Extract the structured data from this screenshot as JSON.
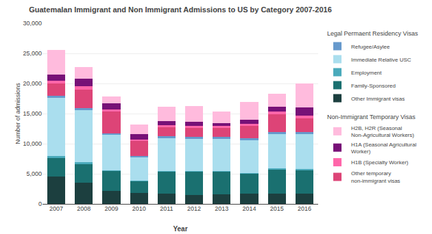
{
  "chart_data": {
    "type": "bar",
    "stacked": true,
    "title": "Guatemalan Immigrant and Non Immigrant Admissions to US by Category 2007-2016",
    "x_label": "Year",
    "y_label": "Number of admissions",
    "categories": [
      "2007",
      "2008",
      "2009",
      "2010",
      "2011",
      "2012",
      "2013",
      "2014",
      "2015",
      "2016"
    ],
    "series": [
      {
        "name": "Other Immigrant visas",
        "group": "Legal Permaent Residency Visas",
        "color": "#1c3f3f",
        "values": [
          4600,
          3500,
          2200,
          1800,
          1700,
          1500,
          1600,
          1700,
          1700,
          1700
        ]
      },
      {
        "name": "Family-Sponsored",
        "group": "Legal Permaent Residency Visas",
        "color": "#1a7070",
        "values": [
          3100,
          3200,
          3300,
          2000,
          3700,
          3900,
          3800,
          3300,
          4000,
          3900
        ]
      },
      {
        "name": "Employment",
        "group": "Legal Permaent Residency Visas",
        "color": "#4aaabb",
        "values": [
          200,
          200,
          100,
          100,
          100,
          100,
          100,
          100,
          200,
          200
        ]
      },
      {
        "name": "Immediate Relative USC",
        "group": "Legal Permaent Residency Visas",
        "color": "#aadeee",
        "values": [
          9800,
          8700,
          5900,
          3900,
          5500,
          5300,
          5400,
          5500,
          5700,
          5800
        ]
      },
      {
        "name": "Refugee/Asylee",
        "group": "Legal Permaent Residency Visas",
        "color": "#6699cc",
        "values": [
          200,
          300,
          200,
          100,
          200,
          300,
          200,
          300,
          300,
          300
        ]
      },
      {
        "name": "Other temporary non-immigrant visas",
        "group": "Non-Immigrant Temporary Visas",
        "color": "#dd4477",
        "values": [
          2100,
          3100,
          3600,
          2500,
          1500,
          1500,
          1500,
          2000,
          3000,
          2300
        ]
      },
      {
        "name": "H1B (Specialty Worker)",
        "group": "Non-Immigrant Temporary Visas",
        "color": "#ff66aa",
        "values": [
          500,
          600,
          400,
          300,
          400,
          400,
          300,
          400,
          400,
          500
        ]
      },
      {
        "name": "H1A (Seasonal Agricultural Worker)",
        "group": "Non-Immigrant Temporary Visas",
        "color": "#771177",
        "values": [
          1000,
          1200,
          1000,
          900,
          600,
          600,
          500,
          700,
          800,
          1300
        ]
      },
      {
        "name": "H2B, H2R (Seasonal Non-Agricultural Workers)",
        "group": "Non-Immigrant Temporary Visas",
        "color": "#ffbbdd",
        "values": [
          4100,
          1900,
          1100,
          1600,
          2400,
          2700,
          1900,
          2900,
          2200,
          4000
        ]
      }
    ],
    "ylim": [
      0,
      30000
    ],
    "yticks": [
      0,
      {
        "value": 5000,
        "label": "5,000"
      },
      {
        "value": 10000,
        "label": "10,000"
      },
      {
        "value": 15000,
        "label": "15,000"
      },
      {
        "value": 20000,
        "label": "20,000"
      },
      {
        "value": 25000,
        "label": "25,000"
      },
      {
        "value": 30000,
        "label": "30,000"
      }
    ],
    "grid": true
  }
}
